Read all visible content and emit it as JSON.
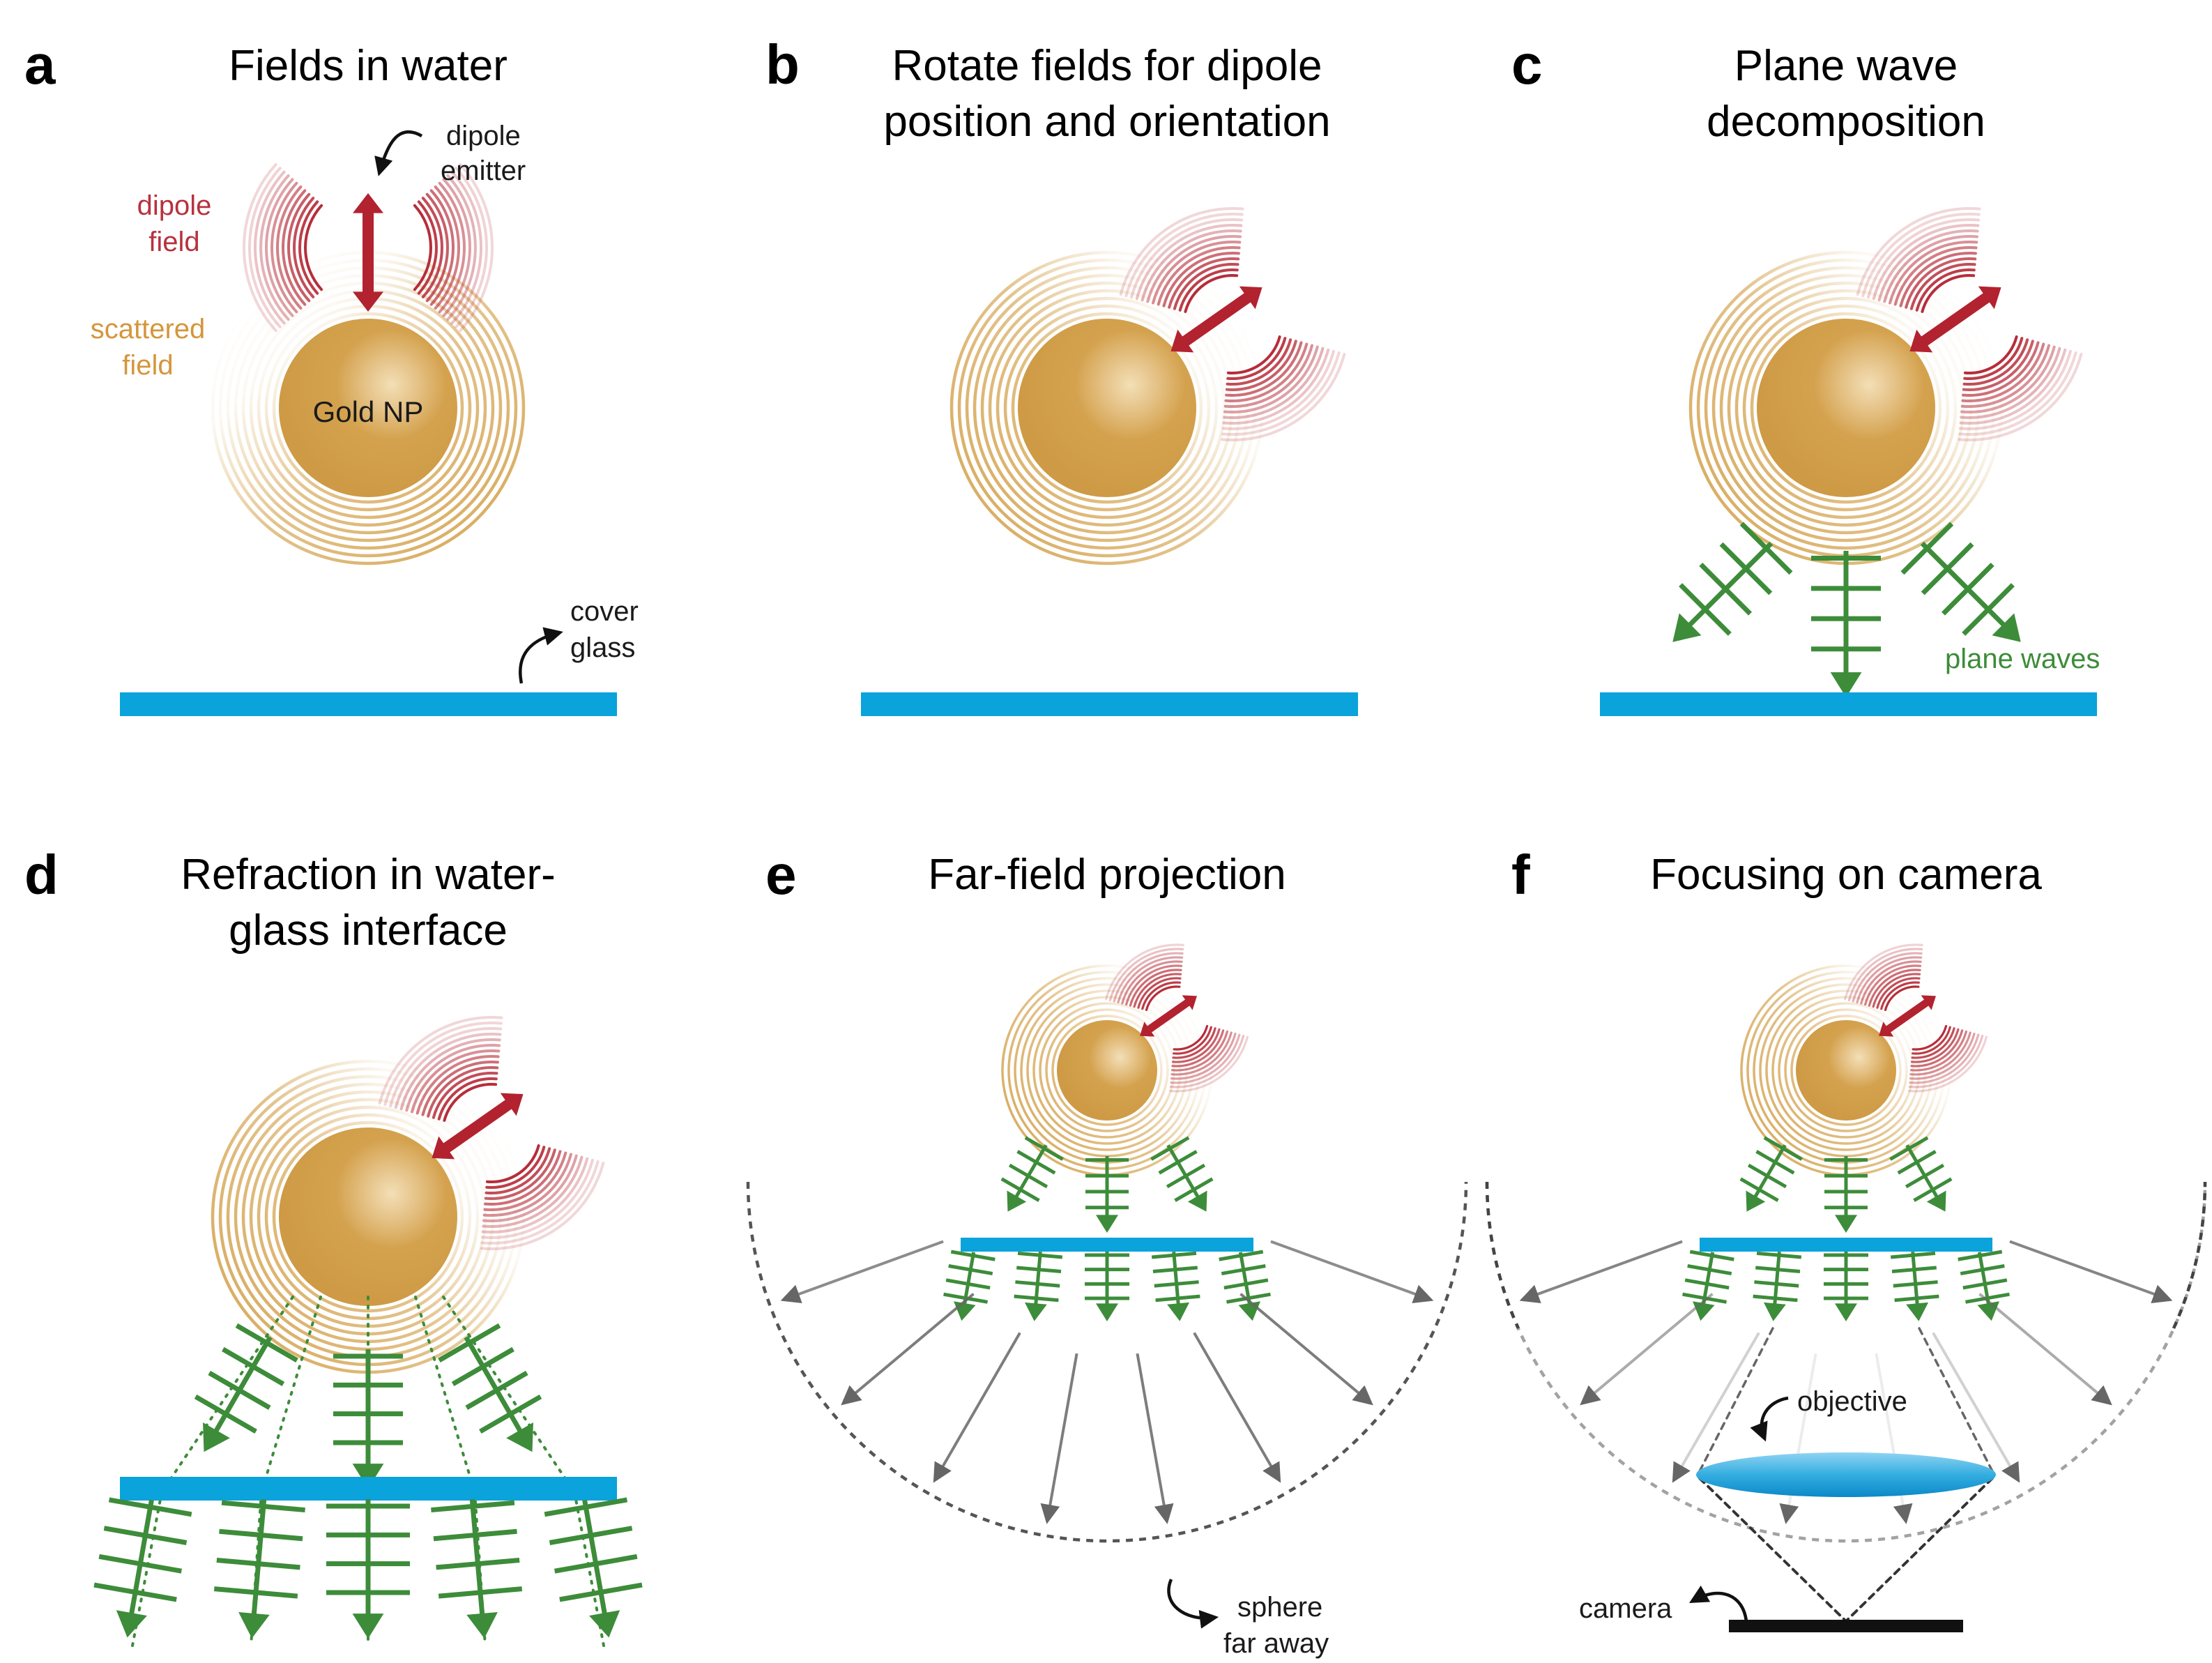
{
  "panels": [
    {
      "letter": "a",
      "title_lines": [
        "Fields in water",
        ""
      ]
    },
    {
      "letter": "b",
      "title_lines": [
        "Rotate fields for dipole",
        "position and orientation"
      ]
    },
    {
      "letter": "c",
      "title_lines": [
        "Plane wave",
        "decomposition"
      ]
    },
    {
      "letter": "d",
      "title_lines": [
        "Refraction in water-",
        "glass interface"
      ]
    },
    {
      "letter": "e",
      "title_lines": [
        "Far-field projection",
        ""
      ]
    },
    {
      "letter": "f",
      "title_lines": [
        "Focusing on camera",
        ""
      ]
    }
  ],
  "labels": {
    "gold_np": "Gold NP",
    "dipole_emitter": [
      "dipole",
      "emitter"
    ],
    "dipole_field": [
      "dipole",
      "field"
    ],
    "scattered_field": [
      "scattered",
      "field"
    ],
    "cover_glass": [
      "cover",
      "glass"
    ],
    "plane_waves": "plane waves",
    "sphere_far_away": [
      "sphere",
      "far away"
    ],
    "objective": "objective",
    "camera": "camera"
  },
  "colors": {
    "gold": "#D4A24E",
    "gold_ring": "#D9AE64",
    "dipole_red": "#B2222F",
    "dipole_label": "#B7323E",
    "scatter_label": "#D4963C",
    "glass_blue": "#0AA3DB",
    "wave_green": "#3D8C3A",
    "arrow_gray": "#666666",
    "camera_black": "#111111"
  }
}
